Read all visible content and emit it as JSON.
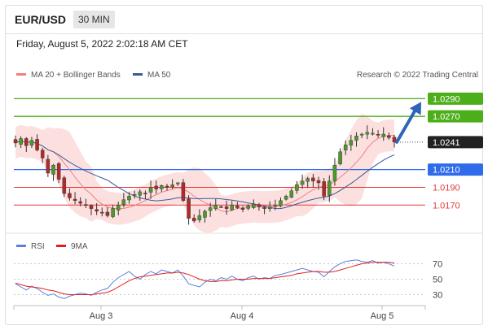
{
  "header": {
    "pair": "EUR/USD",
    "timeframe": "30 MIN",
    "timestamp": "Friday, August 5, 2022 2:02:18 AM CET"
  },
  "chart_data": [
    {
      "type": "candlestick",
      "panel": "price",
      "legend": [
        {
          "name": "MA 20 + Bollinger Bands",
          "color": "#f08080"
        },
        {
          "name": "MA 50",
          "color": "#3a5a9a"
        }
      ],
      "credit": "Research © 2022 Trading Central",
      "x_ticks": [
        "Aug 3",
        "Aug 4",
        "Aug 5"
      ],
      "ylim": [
        1.014,
        1.0305
      ],
      "close_path": [
        1.024,
        1.0245,
        1.0237,
        1.0243,
        1.0232,
        1.0223,
        1.0206,
        1.0215,
        1.0199,
        1.0183,
        1.0178,
        1.0175,
        1.0172,
        1.017,
        1.0166,
        1.0163,
        1.0161,
        1.0158,
        1.0166,
        1.017,
        1.0176,
        1.018,
        1.0182,
        1.0185,
        1.0183,
        1.019,
        1.0188,
        1.0192,
        1.019,
        1.0193,
        1.0195,
        1.0175,
        1.0155,
        1.0152,
        1.0158,
        1.0163,
        1.0167,
        1.017,
        1.0168,
        1.0166,
        1.017,
        1.0167,
        1.0165,
        1.0169,
        1.0171,
        1.0168,
        1.0166,
        1.0168,
        1.017,
        1.0175,
        1.018,
        1.0186,
        1.0193,
        1.0197,
        1.02,
        1.0197,
        1.0195,
        1.018,
        1.0197,
        1.0215,
        1.023,
        1.0238,
        1.0243,
        1.0248,
        1.025,
        1.0252,
        1.0251,
        1.0249,
        1.025,
        1.0246,
        1.0241
      ],
      "levels": [
        {
          "value": "1.0290",
          "kind": "resistance",
          "color": "#4caf1a"
        },
        {
          "value": "1.0270",
          "kind": "resistance",
          "color": "#4caf1a"
        },
        {
          "value": "1.0241",
          "kind": "last",
          "color": "#222222"
        },
        {
          "value": "1.0210",
          "kind": "pivot",
          "color": "#2f6bea"
        },
        {
          "value": "1.0190",
          "kind": "support",
          "color": "#e03a3a"
        },
        {
          "value": "1.0170",
          "kind": "support",
          "color": "#e03a3a"
        }
      ],
      "forecast": {
        "from": 1.0241,
        "to": 1.029,
        "direction": "up"
      }
    },
    {
      "type": "line",
      "panel": "rsi",
      "legend": [
        {
          "name": "RSI",
          "color": "#5b7fe0"
        },
        {
          "name": "9MA",
          "color": "#e02020"
        }
      ],
      "y_ticks": [
        70,
        50,
        30
      ],
      "ylim": [
        20,
        80
      ],
      "rsi": [
        44,
        40,
        36,
        41,
        38,
        33,
        29,
        31,
        27,
        25,
        28,
        30,
        32,
        31,
        29,
        33,
        36,
        38,
        46,
        52,
        56,
        60,
        54,
        50,
        56,
        60,
        57,
        62,
        60,
        58,
        62,
        54,
        44,
        42,
        40,
        46,
        50,
        48,
        52,
        50,
        54,
        50,
        48,
        52,
        54,
        50,
        52,
        51,
        55,
        56,
        58,
        60,
        62,
        64,
        62,
        60,
        59,
        53,
        60,
        66,
        70,
        73,
        74,
        75,
        73,
        72,
        74,
        71,
        72,
        70,
        67
      ],
      "ma9": [
        45,
        43,
        41,
        40,
        39,
        38,
        36,
        35,
        33,
        31,
        30,
        30,
        30,
        30,
        30,
        31,
        32,
        33,
        36,
        40,
        44,
        48,
        51,
        53,
        54,
        55,
        56,
        57,
        58,
        58,
        59,
        58,
        56,
        53,
        50,
        48,
        47,
        47,
        48,
        48,
        49,
        50,
        50,
        50,
        51,
        51,
        51,
        51,
        52,
        53,
        54,
        55,
        57,
        58,
        59,
        60,
        60,
        59,
        59,
        60,
        62,
        64,
        66,
        68,
        70,
        71,
        72,
        72,
        72,
        72,
        71
      ]
    }
  ]
}
